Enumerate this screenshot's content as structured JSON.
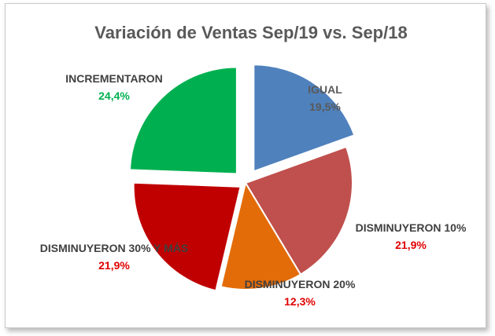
{
  "chart_data": {
    "type": "pie",
    "title": "Variación de Ventas Sep/19 vs. Sep/18",
    "slices": [
      {
        "label": "IGUAL",
        "value_label": "19,5%",
        "value": 19.5,
        "color": "#4F81BD",
        "label_color": "#595959",
        "value_color": "#595959"
      },
      {
        "label": "DISMINUYERON 10%",
        "value_label": "21,9%",
        "value": 21.9,
        "color": "#C0504D",
        "label_color": "#404040",
        "value_color": "#E00000"
      },
      {
        "label": "DISMINUYERON 20%",
        "value_label": "12,3%",
        "value": 12.3,
        "color": "#E36C09",
        "label_color": "#404040",
        "value_color": "#E00000"
      },
      {
        "label": "DISMINUYERON 30% Y MÁS",
        "value_label": "21,9%",
        "value": 21.9,
        "color": "#C00000",
        "label_color": "#404040",
        "value_color": "#E00000"
      },
      {
        "label": "INCREMENTARON",
        "value_label": "24,4%",
        "value": 24.4,
        "color": "#00B050",
        "label_color": "#404040",
        "value_color": "#00B050"
      }
    ],
    "legend": "none"
  }
}
